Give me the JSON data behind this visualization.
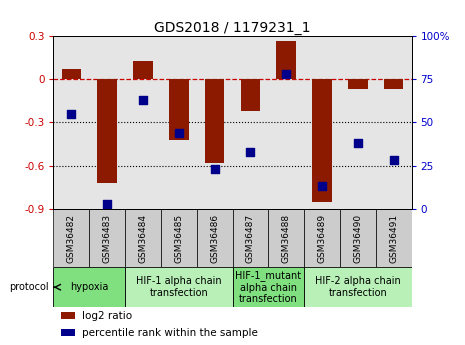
{
  "title": "GDS2018 / 1179231_1",
  "samples": [
    "GSM36482",
    "GSM36483",
    "GSM36484",
    "GSM36485",
    "GSM36486",
    "GSM36487",
    "GSM36488",
    "GSM36489",
    "GSM36490",
    "GSM36491"
  ],
  "log2_ratio": [
    0.07,
    -0.72,
    0.13,
    -0.42,
    -0.58,
    -0.22,
    0.27,
    -0.85,
    -0.07,
    -0.07
  ],
  "percentile_rank": [
    55,
    3,
    63,
    44,
    23,
    33,
    78,
    13,
    38,
    28
  ],
  "ylim_left": [
    -0.9,
    0.3
  ],
  "ylim_right": [
    0,
    100
  ],
  "yticks_left": [
    -0.9,
    -0.6,
    -0.3,
    0.0,
    0.3
  ],
  "yticks_right": [
    0,
    25,
    50,
    75,
    100
  ],
  "ytick_labels_left": [
    "-0.9",
    "-0.6",
    "-0.3",
    "0",
    "0.3"
  ],
  "ytick_labels_right": [
    "0",
    "25",
    "50",
    "75",
    "100%"
  ],
  "hline_dotted": [
    -0.3,
    -0.6
  ],
  "hline_dashed": 0.0,
  "bar_color": "#8B1A00",
  "dot_color": "#00008B",
  "bar_width": 0.55,
  "groups": [
    {
      "label": "hypoxia",
      "start": 0,
      "end": 1,
      "color": "#80E080"
    },
    {
      "label": "HIF-1 alpha chain\ntransfection",
      "start": 2,
      "end": 4,
      "color": "#b8f0b8"
    },
    {
      "label": "HIF-1_mutant\nalpha chain\ntransfection",
      "start": 5,
      "end": 6,
      "color": "#80E080"
    },
    {
      "label": "HIF-2 alpha chain\ntransfection",
      "start": 7,
      "end": 9,
      "color": "#b8f0b8"
    }
  ],
  "legend_items": [
    {
      "label": "log2 ratio",
      "color": "#8B1A00"
    },
    {
      "label": "percentile rank within the sample",
      "color": "#00008B"
    }
  ],
  "protocol_label": "protocol",
  "left_axis_color": "#cc0000",
  "right_axis_color": "#0000cc",
  "title_fontsize": 10,
  "tick_fontsize": 7.5,
  "group_fontsize": 7,
  "sample_fontsize": 6.5,
  "legend_fontsize": 7.5,
  "col_bg_color": "#cccccc",
  "col_bg_alpha": 0.5
}
